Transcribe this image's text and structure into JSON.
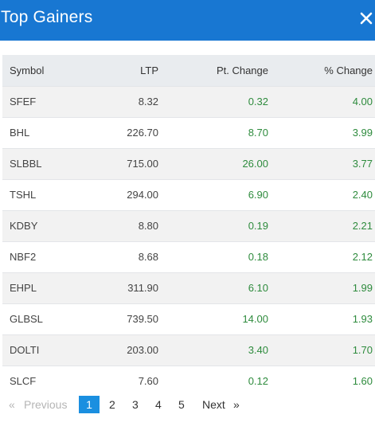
{
  "header": {
    "title": "Top Gainers",
    "close_icon": "close-icon"
  },
  "table": {
    "headers": {
      "symbol": "Symbol",
      "ltp": "LTP",
      "pt_change": "Pt. Change",
      "pct_change": "% Change"
    },
    "rows": [
      {
        "symbol": "SFEF",
        "ltp": "8.32",
        "pt_change": "0.32",
        "pct_change": "4.00"
      },
      {
        "symbol": "BHL",
        "ltp": "226.70",
        "pt_change": "8.70",
        "pct_change": "3.99"
      },
      {
        "symbol": "SLBBL",
        "ltp": "715.00",
        "pt_change": "26.00",
        "pct_change": "3.77"
      },
      {
        "symbol": "TSHL",
        "ltp": "294.00",
        "pt_change": "6.90",
        "pct_change": "2.40"
      },
      {
        "symbol": "KDBY",
        "ltp": "8.80",
        "pt_change": "0.19",
        "pct_change": "2.21"
      },
      {
        "symbol": "NBF2",
        "ltp": "8.68",
        "pt_change": "0.18",
        "pct_change": "2.12"
      },
      {
        "symbol": "EHPL",
        "ltp": "311.90",
        "pt_change": "6.10",
        "pct_change": "1.99"
      },
      {
        "symbol": "GLBSL",
        "ltp": "739.50",
        "pt_change": "14.00",
        "pct_change": "1.93"
      },
      {
        "symbol": "DOLTI",
        "ltp": "203.00",
        "pt_change": "3.40",
        "pct_change": "1.70"
      },
      {
        "symbol": "SLCF",
        "ltp": "7.60",
        "pt_change": "0.12",
        "pct_change": "1.60"
      }
    ]
  },
  "pagination": {
    "first_label": "«",
    "previous_label": "Previous",
    "pages": [
      "1",
      "2",
      "3",
      "4",
      "5"
    ],
    "active_page": "1",
    "next_label": "Next",
    "last_label": "»"
  },
  "colors": {
    "header_bg": "#1877d2",
    "gain_green": "#2e8b3d",
    "active_page_bg": "#1a8fe0"
  }
}
